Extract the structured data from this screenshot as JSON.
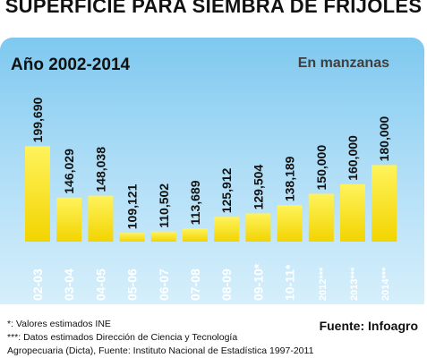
{
  "chart_data": {
    "type": "bar",
    "title": "SUPERFICIE PARA SIEMBRA DE FRIJOLES",
    "subtitle": "Año 2002-2014",
    "unit_label": "En manzanas",
    "categories": [
      "02-03",
      "03-04",
      "04-05",
      "05-06",
      "06-07",
      "07-08",
      "08-09",
      "09-10*",
      "10-11*",
      "2012***",
      "2013***",
      "2014***"
    ],
    "values": [
      199690,
      146029,
      148038,
      109121,
      110502,
      113689,
      125912,
      129504,
      138189,
      150000,
      160000,
      180000
    ],
    "value_labels": [
      "199,690",
      "146,029",
      "148,038",
      "109,121",
      "110,502",
      "113,689",
      "125,912",
      "129,504",
      "138,189",
      "150,000",
      "160,000",
      "180,000"
    ],
    "ylim": [
      0,
      200000
    ],
    "grid": false
  },
  "colors": {
    "bar_top": "#fff35c",
    "bar_bottom": "#f2d400",
    "panel_top": "#7ec8ef",
    "panel_bottom": "#d6effb",
    "label_text": "#ffffff"
  },
  "notes": [
    "*: Valores estimados INE",
    "***: Datos estimados Dirección de Ciencia y Tecnología",
    "Agropecuaria (Dicta), Fuente: Instituto Nacional de Estadística 1997-2011"
  ],
  "source": "Fuente: Infoagro"
}
